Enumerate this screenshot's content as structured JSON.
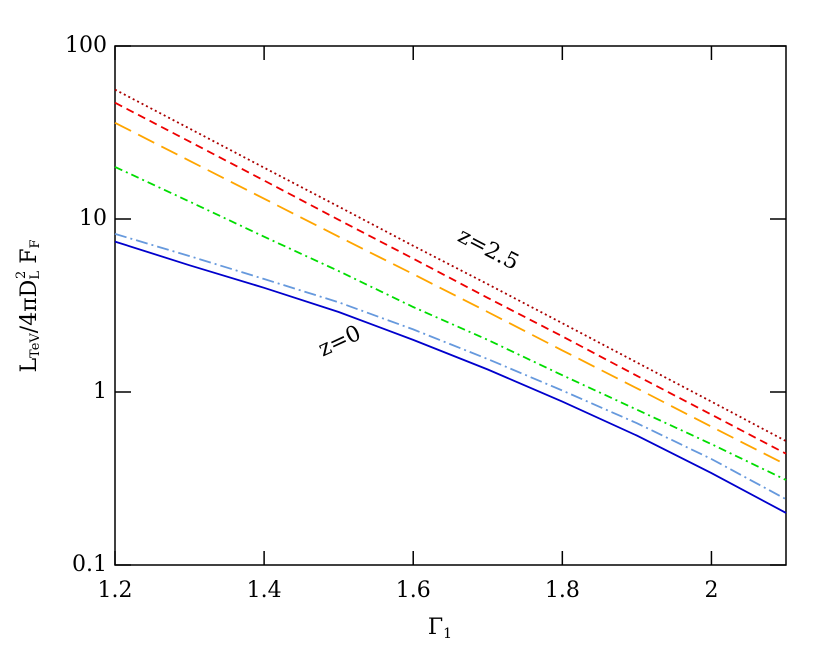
{
  "chart_data": {
    "type": "line",
    "x_label": {
      "parts": [
        "Γ",
        "1"
      ]
    },
    "y_label": {
      "parts": [
        "L",
        "TeV",
        "/4πD",
        "L",
        "2",
        " F",
        "F"
      ]
    },
    "annotations": [
      "z=2.5",
      "z=0"
    ],
    "x": [
      1.2,
      1.3,
      1.4,
      1.5,
      1.6,
      1.7,
      1.8,
      1.9,
      2.0,
      2.1
    ],
    "series": [
      {
        "color": "#0000cc",
        "dash": "none",
        "values": [
          7.4,
          5.4,
          4.0,
          2.9,
          2.0,
          1.35,
          0.88,
          0.56,
          0.34,
          0.2
        ]
      },
      {
        "color": "#6699dd",
        "dash": "12,4,2,4",
        "values": [
          8.2,
          6.1,
          4.5,
          3.3,
          2.3,
          1.55,
          1.02,
          0.66,
          0.41,
          0.24
        ]
      },
      {
        "color": "#00dd00",
        "dash": "8,4,2,4",
        "values": [
          20,
          12.6,
          7.9,
          5.0,
          3.1,
          2.0,
          1.25,
          0.79,
          0.5,
          0.31
        ]
      },
      {
        "color": "#ffa500",
        "dash": "18,8",
        "values": [
          36,
          21.7,
          13.1,
          7.9,
          4.8,
          2.9,
          1.74,
          1.05,
          0.63,
          0.38
        ]
      },
      {
        "color": "#ee0000",
        "dash": "8,5",
        "values": [
          47,
          28,
          16.7,
          9.9,
          5.9,
          3.5,
          2.1,
          1.24,
          0.74,
          0.44
        ]
      },
      {
        "color": "#aa0000",
        "dash": "2,3",
        "values": [
          56,
          33.3,
          19.8,
          11.8,
          7.0,
          4.2,
          2.5,
          1.48,
          0.88,
          0.52
        ]
      }
    ],
    "xlim": [
      1.2,
      2.1
    ],
    "xticks": [
      1.2,
      1.4,
      1.6,
      1.8,
      2
    ],
    "ylim": [
      0.1,
      100
    ],
    "yticks": [
      0.1,
      1,
      10,
      100
    ],
    "log_y": true,
    "grid": false
  }
}
